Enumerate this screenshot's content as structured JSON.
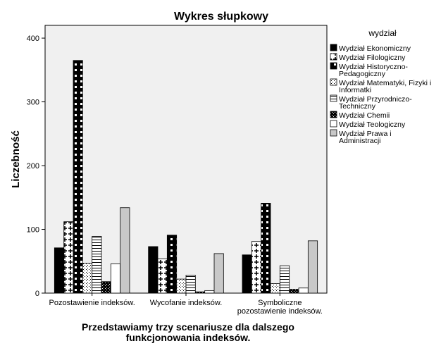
{
  "chart_data": {
    "type": "bar",
    "title": "Wykres słupkowy",
    "ylabel": "Liczebność",
    "xlabel": [
      "Przedstawiamy trzy scenariusze dla dalszego",
      "funkcjonowania indeksów."
    ],
    "ylim": [
      0,
      420
    ],
    "yticks": [
      0,
      100,
      200,
      300,
      400
    ],
    "categories": [
      [
        "Pozostawienie indeksów."
      ],
      [
        "Wycofanie indeksów."
      ],
      [
        "Symboliczne",
        "pozostawienie indeksów."
      ]
    ],
    "legend_title": "wydział",
    "legend_position": "right",
    "series": [
      {
        "name": [
          "Wydział Ekonomiczny"
        ],
        "pattern": "solid-black",
        "values": [
          71,
          73,
          60
        ]
      },
      {
        "name": [
          "Wydział Filologiczny"
        ],
        "pattern": "plus",
        "values": [
          112,
          54,
          81
        ]
      },
      {
        "name": [
          "Wydział Historyczno-",
          "Pedagogiczny"
        ],
        "pattern": "checker",
        "values": [
          365,
          91,
          141
        ]
      },
      {
        "name": [
          "Wydział Matematyki, Fizyki i",
          "Informatki"
        ],
        "pattern": "dots",
        "values": [
          47,
          22,
          15
        ]
      },
      {
        "name": [
          "Wydział Przyrodniczo-",
          "Techniczny"
        ],
        "pattern": "hlines",
        "values": [
          89,
          28,
          43
        ]
      },
      {
        "name": [
          "Wydział Chemii"
        ],
        "pattern": "dense-dots",
        "values": [
          18,
          2,
          6
        ]
      },
      {
        "name": [
          "Wydział Teologiczny"
        ],
        "pattern": "white",
        "values": [
          46,
          4,
          8
        ]
      },
      {
        "name": [
          "Wydział Prawa i",
          "Administracji"
        ],
        "pattern": "gray",
        "values": [
          134,
          62,
          82
        ]
      }
    ],
    "colors": {
      "plot_bg": "#f0f0f0",
      "gray_bar": "#c8c8c8",
      "border": "#000000"
    }
  }
}
